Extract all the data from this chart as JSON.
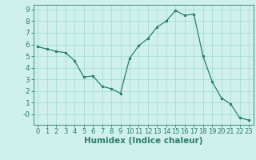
{
  "x": [
    0,
    1,
    2,
    3,
    4,
    5,
    6,
    7,
    8,
    9,
    10,
    11,
    12,
    13,
    14,
    15,
    16,
    17,
    18,
    19,
    20,
    21,
    22,
    23
  ],
  "y": [
    5.8,
    5.6,
    5.4,
    5.3,
    4.6,
    3.2,
    3.3,
    2.4,
    2.2,
    1.8,
    4.8,
    5.9,
    6.5,
    7.5,
    8.0,
    8.9,
    8.5,
    8.6,
    5.0,
    2.8,
    1.4,
    0.9,
    -0.3,
    -0.5
  ],
  "line_color": "#2d7d6e",
  "marker": ".",
  "marker_size": 3,
  "bg_color": "#cff0eb",
  "grid_color": "#a8ddd7",
  "xlabel": "Humidex (Indice chaleur)",
  "xlabel_fontsize": 7.5,
  "tick_fontsize": 6.5,
  "ylim": [
    -0.9,
    9.4
  ],
  "xlim": [
    -0.5,
    23.5
  ],
  "yticks": [
    0,
    1,
    2,
    3,
    4,
    5,
    6,
    7,
    8,
    9
  ],
  "ytick_labels": [
    "-0",
    "1",
    "2",
    "3",
    "4",
    "5",
    "6",
    "7",
    "8",
    "9"
  ],
  "xticks": [
    0,
    1,
    2,
    3,
    4,
    5,
    6,
    7,
    8,
    9,
    10,
    11,
    12,
    13,
    14,
    15,
    16,
    17,
    18,
    19,
    20,
    21,
    22,
    23
  ]
}
